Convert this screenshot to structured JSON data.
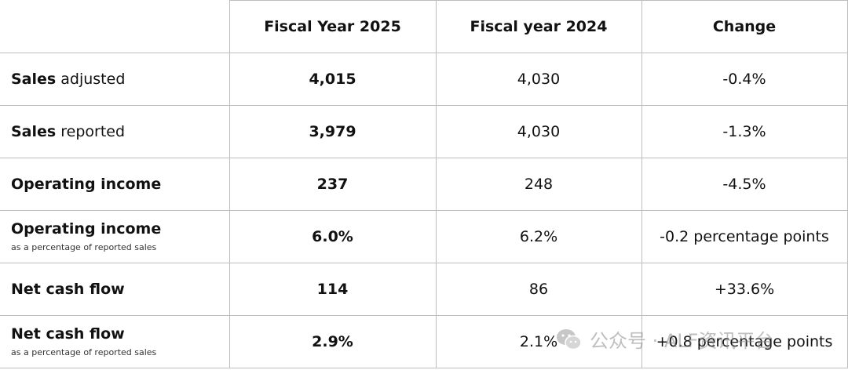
{
  "table": {
    "headers": [
      "",
      "Fiscal Year 2025",
      "Fiscal year 2024",
      "Change"
    ],
    "rows": [
      {
        "label_bold": "Sales",
        "label_rest": " adjusted",
        "sublabel": "",
        "fy2025": "4,015",
        "fy2024": "4,030",
        "change": "-0.4%"
      },
      {
        "label_bold": "Sales",
        "label_rest": " reported",
        "sublabel": "",
        "fy2025": "3,979",
        "fy2024": "4,030",
        "change": "-1.3%"
      },
      {
        "label_bold": "Operating income",
        "label_rest": "",
        "sublabel": "",
        "fy2025": "237",
        "fy2024": "248",
        "change": "-4.5%"
      },
      {
        "label_bold": "Operating income",
        "label_rest": "",
        "sublabel": "as a percentage of reported sales",
        "fy2025": "6.0%",
        "fy2024": "6.2%",
        "change": "-0.2 percentage points"
      },
      {
        "label_bold": "Net cash flow",
        "label_rest": "",
        "sublabel": "",
        "fy2025": "114",
        "fy2024": "86",
        "change": "+33.6%"
      },
      {
        "label_bold": "Net cash flow",
        "label_rest": "",
        "sublabel": "as a percentage of reported sales",
        "fy2025": "2.9%",
        "fy2024": "2.1%",
        "change": "+0.8 percentage points"
      }
    ]
  },
  "watermark": {
    "text": "公众号 · ALF资讯平台",
    "icon": "wechat-icon",
    "color": "#8a8a8a"
  }
}
